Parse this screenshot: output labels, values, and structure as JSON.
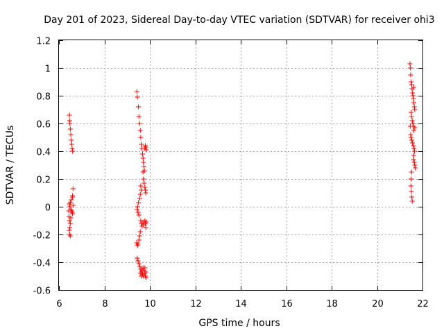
{
  "chart_data": {
    "type": "scatter",
    "title": "Day 201 of 2023, Sidereal Day-to-day VTEC variation (SDTVAR) for receiver ohi3",
    "xlabel": "GPS time / hours",
    "ylabel": "SDTVAR / TECUs",
    "xlim": [
      6,
      22
    ],
    "ylim": [
      -0.6,
      1.2
    ],
    "xticks": [
      6,
      8,
      10,
      12,
      14,
      16,
      18,
      20,
      22
    ],
    "xtick_labels": [
      "6",
      "8",
      "10",
      "12",
      "14",
      "16",
      "18",
      "20",
      "22"
    ],
    "yticks": [
      -0.6,
      -0.4,
      -0.2,
      0,
      0.2,
      0.4,
      0.6,
      0.8,
      1,
      1.2
    ],
    "ytick_labels": [
      "-0.6",
      "-0.4",
      "-0.2",
      "0",
      "0.2",
      "0.4",
      "0.6",
      "0.8",
      "1",
      "1.2"
    ],
    "grid": true,
    "marker": "+",
    "series_color": "#ff0000",
    "series": [
      {
        "name": "SDTVAR",
        "points": [
          [
            6.46,
            0.66
          ],
          [
            6.47,
            0.62
          ],
          [
            6.48,
            0.6
          ],
          [
            6.5,
            0.56
          ],
          [
            6.52,
            0.52
          ],
          [
            6.54,
            0.48
          ],
          [
            6.56,
            0.45
          ],
          [
            6.58,
            0.42
          ],
          [
            6.6,
            0.4
          ],
          [
            6.62,
            0.13
          ],
          [
            6.6,
            0.08
          ],
          [
            6.55,
            0.05
          ],
          [
            6.5,
            0.03
          ],
          [
            6.45,
            0.02
          ],
          [
            6.48,
            0.0
          ],
          [
            6.52,
            -0.02
          ],
          [
            6.56,
            -0.03
          ],
          [
            6.6,
            -0.05
          ],
          [
            6.44,
            -0.07
          ],
          [
            6.46,
            -0.1
          ],
          [
            6.5,
            -0.12
          ],
          [
            6.48,
            -0.15
          ],
          [
            6.45,
            -0.17
          ],
          [
            6.47,
            -0.2
          ],
          [
            6.52,
            -0.08
          ],
          [
            6.58,
            -0.04
          ],
          [
            6.62,
            0.01
          ],
          [
            6.43,
            -0.03
          ],
          [
            6.6,
            0.07
          ],
          [
            6.5,
            -0.21
          ],
          [
            9.43,
            0.83
          ],
          [
            9.45,
            0.79
          ],
          [
            9.5,
            0.72
          ],
          [
            9.52,
            0.65
          ],
          [
            9.55,
            0.6
          ],
          [
            9.58,
            0.55
          ],
          [
            9.6,
            0.5
          ],
          [
            9.62,
            0.45
          ],
          [
            9.65,
            0.42
          ],
          [
            9.68,
            0.38
          ],
          [
            9.7,
            0.35
          ],
          [
            9.72,
            0.32
          ],
          [
            9.74,
            0.29
          ],
          [
            9.76,
            0.26
          ],
          [
            9.78,
            0.42
          ],
          [
            9.8,
            0.44
          ],
          [
            9.82,
            0.43
          ],
          [
            9.84,
            0.41
          ],
          [
            9.7,
            0.25
          ],
          [
            9.72,
            0.2
          ],
          [
            9.75,
            0.17
          ],
          [
            9.78,
            0.14
          ],
          [
            9.8,
            0.12
          ],
          [
            9.82,
            0.1
          ],
          [
            9.6,
            0.15
          ],
          [
            9.62,
            0.12
          ],
          [
            9.58,
            0.09
          ],
          [
            9.56,
            0.06
          ],
          [
            9.5,
            0.03
          ],
          [
            9.46,
            0.0
          ],
          [
            9.44,
            -0.02
          ],
          [
            9.48,
            -0.04
          ],
          [
            9.52,
            -0.06
          ],
          [
            9.6,
            -0.1
          ],
          [
            9.62,
            -0.12
          ],
          [
            9.66,
            -0.14
          ],
          [
            9.7,
            -0.11
          ],
          [
            9.74,
            -0.13
          ],
          [
            9.78,
            -0.1
          ],
          [
            9.8,
            -0.12
          ],
          [
            9.82,
            -0.15
          ],
          [
            9.84,
            -0.11
          ],
          [
            9.58,
            -0.18
          ],
          [
            9.55,
            -0.21
          ],
          [
            9.52,
            -0.24
          ],
          [
            9.48,
            -0.27
          ],
          [
            9.45,
            -0.28
          ],
          [
            9.42,
            -0.26
          ],
          [
            9.44,
            -0.37
          ],
          [
            9.48,
            -0.39
          ],
          [
            9.52,
            -0.41
          ],
          [
            9.56,
            -0.43
          ],
          [
            9.6,
            -0.45
          ],
          [
            9.64,
            -0.47
          ],
          [
            9.68,
            -0.49
          ],
          [
            9.72,
            -0.5
          ],
          [
            9.76,
            -0.48
          ],
          [
            9.8,
            -0.5
          ],
          [
            9.84,
            -0.51
          ],
          [
            9.7,
            -0.44
          ],
          [
            9.66,
            -0.46
          ],
          [
            9.62,
            -0.5
          ],
          [
            9.74,
            -0.46
          ],
          [
            9.78,
            -0.44
          ],
          [
            9.58,
            -0.48
          ],
          [
            9.82,
            -0.47
          ],
          [
            21.45,
            1.03
          ],
          [
            21.47,
            1.0
          ],
          [
            21.48,
            0.95
          ],
          [
            21.5,
            0.9
          ],
          [
            21.52,
            0.88
          ],
          [
            21.54,
            0.85
          ],
          [
            21.56,
            0.82
          ],
          [
            21.58,
            0.8
          ],
          [
            21.6,
            0.78
          ],
          [
            21.62,
            0.75
          ],
          [
            21.64,
            0.72
          ],
          [
            21.66,
            0.7
          ],
          [
            21.5,
            0.68
          ],
          [
            21.52,
            0.65
          ],
          [
            21.55,
            0.62
          ],
          [
            21.58,
            0.6
          ],
          [
            21.6,
            0.58
          ],
          [
            21.62,
            0.55
          ],
          [
            21.48,
            0.52
          ],
          [
            21.5,
            0.5
          ],
          [
            21.53,
            0.48
          ],
          [
            21.56,
            0.46
          ],
          [
            21.6,
            0.44
          ],
          [
            21.63,
            0.42
          ],
          [
            21.65,
            0.4
          ],
          [
            21.62,
            0.37
          ],
          [
            21.6,
            0.34
          ],
          [
            21.64,
            0.32
          ],
          [
            21.66,
            0.3
          ],
          [
            21.68,
            0.28
          ],
          [
            21.52,
            0.25
          ],
          [
            21.5,
            0.2
          ],
          [
            21.49,
            0.15
          ],
          [
            21.51,
            0.11
          ],
          [
            21.53,
            0.07
          ],
          [
            21.55,
            0.04
          ],
          [
            21.58,
            0.6
          ],
          [
            21.62,
            0.86
          ],
          [
            21.66,
            0.57
          ],
          [
            21.46,
            0.58
          ]
        ]
      }
    ]
  }
}
